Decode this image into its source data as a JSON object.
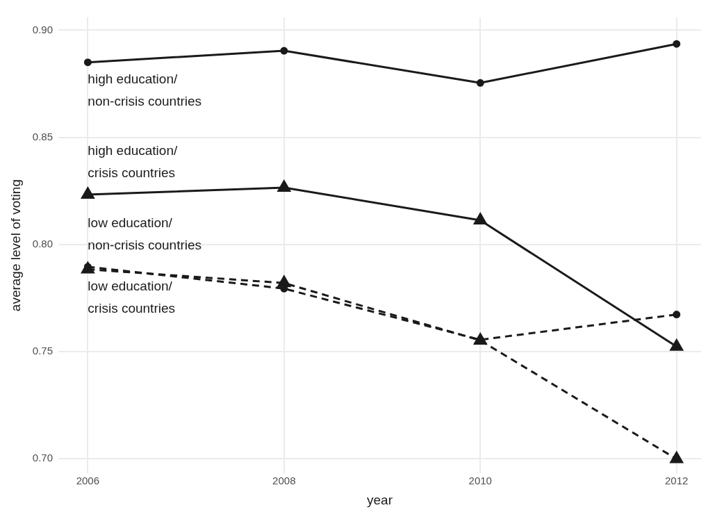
{
  "chart_data": {
    "type": "line",
    "xlabel": "year",
    "ylabel": "average level of voting",
    "x": [
      2006,
      2008,
      2010,
      2012
    ],
    "xlim": [
      2005.7,
      2012.25
    ],
    "xticks": [
      2006,
      2008,
      2010,
      2012
    ],
    "ylim": [
      0.693,
      0.906
    ],
    "yticks": [
      {
        "value": 0.7,
        "label": "0.70"
      },
      0.75,
      {
        "value": 0.8,
        "label": "0.80"
      },
      0.85,
      {
        "value": 0.9,
        "label": "0.90"
      }
    ],
    "grid": true,
    "legend": false,
    "series": [
      {
        "name": "high education/ non-crisis countries",
        "color": "#1a1a1a",
        "marker": "circle",
        "line_style": "solid",
        "values": [
          0.885,
          0.8904,
          0.8754,
          0.8936
        ]
      },
      {
        "name": "high education/ crisis countries",
        "color": "#1a1a1a",
        "marker": "triangle",
        "line_style": "solid",
        "values": [
          0.8232,
          0.8265,
          0.8112,
          0.7522
        ]
      },
      {
        "name": "low education/ non-crisis countries",
        "color": "#1a1a1a",
        "marker": "circle",
        "line_style": "dashed",
        "values": [
          0.7895,
          0.7793,
          0.7554,
          0.7672
        ]
      },
      {
        "name": "low education/ crisis countries",
        "color": "#1a1a1a",
        "marker": "triangle",
        "line_style": "dashed",
        "values": [
          0.7883,
          0.7819,
          0.7551,
          0.6997
        ]
      }
    ]
  }
}
